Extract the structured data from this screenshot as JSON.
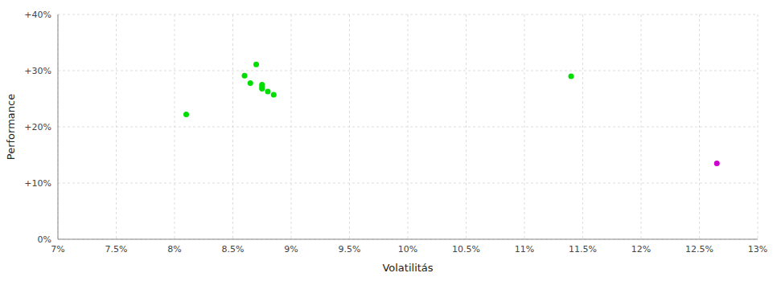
{
  "chart_data": {
    "type": "scatter",
    "xlabel": "Volatilitás",
    "ylabel": "Performance",
    "xlim": [
      0.07,
      0.13
    ],
    "ylim": [
      0.0,
      0.4
    ],
    "xticks": [
      {
        "value": 0.07,
        "label": "7%"
      },
      {
        "value": 0.075,
        "label": "7.5%"
      },
      {
        "value": 0.08,
        "label": "8%"
      },
      {
        "value": 0.085,
        "label": "8.5%"
      },
      {
        "value": 0.09,
        "label": "9%"
      },
      {
        "value": 0.095,
        "label": "9.5%"
      },
      {
        "value": 0.1,
        "label": "10%"
      },
      {
        "value": 0.105,
        "label": "10.5%"
      },
      {
        "value": 0.11,
        "label": "11%"
      },
      {
        "value": 0.115,
        "label": "11.5%"
      },
      {
        "value": 0.12,
        "label": "12%"
      },
      {
        "value": 0.125,
        "label": "12.5%"
      },
      {
        "value": 0.13,
        "label": "13%"
      }
    ],
    "yticks": [
      {
        "value": 0.0,
        "label": "0%"
      },
      {
        "value": 0.1,
        "label": "+10%"
      },
      {
        "value": 0.2,
        "label": "+20%"
      },
      {
        "value": 0.3,
        "label": "+30%"
      },
      {
        "value": 0.4,
        "label": "+40%"
      }
    ],
    "grid": true,
    "series": [
      {
        "color": "#00dd00",
        "x": [
          0.087,
          0.086,
          0.0865,
          0.0875,
          0.0875,
          0.0875,
          0.088,
          0.0885,
          0.081,
          0.114
        ],
        "values": [
          0.311,
          0.291,
          0.278,
          0.275,
          0.271,
          0.268,
          0.263,
          0.257,
          0.222,
          0.29
        ]
      },
      {
        "color": "#cc00cc",
        "x": [
          0.1265
        ],
        "values": [
          0.135
        ]
      }
    ]
  }
}
